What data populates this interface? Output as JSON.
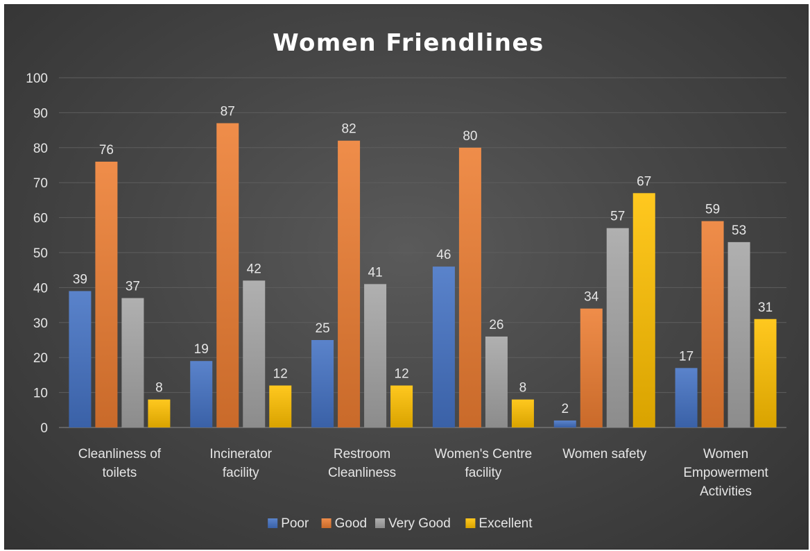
{
  "chart_data": {
    "type": "bar",
    "title": "Women Friendlines",
    "xlabel": "",
    "ylabel": "",
    "ylim": [
      0,
      100
    ],
    "yticks": [
      0,
      10,
      20,
      30,
      40,
      50,
      60,
      70,
      80,
      90,
      100
    ],
    "grid": true,
    "legend_position": "bottom",
    "categories": [
      [
        "Cleanliness of",
        "toilets"
      ],
      [
        "Incinerator",
        "facility"
      ],
      [
        "Restroom",
        "Cleanliness"
      ],
      [
        "Women's Centre",
        "facility"
      ],
      [
        "Women safety"
      ],
      [
        "Women",
        "Empowerment",
        "Activities"
      ]
    ],
    "series": [
      {
        "name": "Poor",
        "color": "#4472C4",
        "values": [
          39,
          19,
          25,
          46,
          2,
          17
        ]
      },
      {
        "name": "Good",
        "color": "#ED7D31",
        "values": [
          76,
          87,
          82,
          80,
          34,
          59
        ]
      },
      {
        "name": "Very Good",
        "color": "#A5A5A5",
        "values": [
          37,
          42,
          41,
          26,
          57,
          53
        ]
      },
      {
        "name": "Excellent",
        "color": "#FFC000",
        "values": [
          8,
          12,
          12,
          8,
          67,
          31
        ]
      }
    ]
  }
}
